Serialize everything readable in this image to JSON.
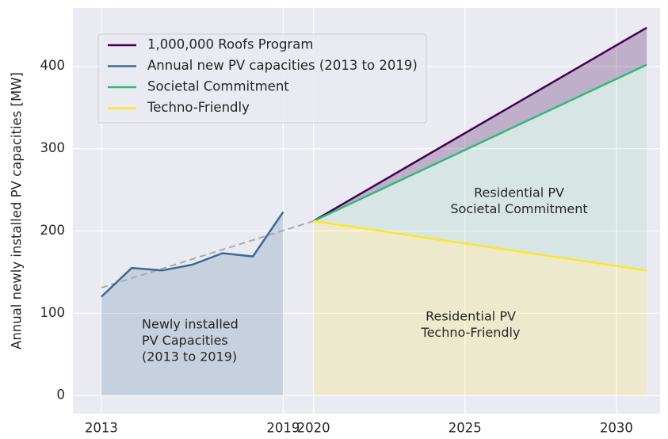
{
  "chart_data": {
    "type": "line",
    "y_label": "Annual newly installed PV capacities [MW]",
    "xlim": [
      2012.06,
      2031.44
    ],
    "ylim": [
      -22,
      471
    ],
    "xticks": [
      2013,
      2019,
      2020,
      2025,
      2030
    ],
    "yticks": [
      0,
      100,
      200,
      300,
      400
    ],
    "grid": true,
    "background": "#eaeaf2",
    "legend": "upper left",
    "series": [
      {
        "name": "1,000,000 Roofs Program",
        "color": "#440154",
        "x": [
          2020,
          2031
        ],
        "values": [
          212,
          447
        ],
        "fill_to": 2,
        "fill_opacity": 0.25
      },
      {
        "name": "Annual new PV capacities (2013 to 2019)",
        "color": "#3b6a96",
        "x": [
          2013,
          2014,
          2015,
          2016,
          2017,
          2018,
          2019
        ],
        "values": [
          120,
          155,
          152,
          159,
          173,
          169,
          223
        ],
        "fill_to": "zero",
        "fill_opacity": 0.2
      },
      {
        "name": "Societal Commitment",
        "color": "#35b779",
        "x": [
          2020,
          2031
        ],
        "values": [
          212,
          402
        ],
        "fill_to": 3,
        "fill_opacity": 0.1
      },
      {
        "name": "Techno-Friendly",
        "color": "#fde725",
        "x": [
          2020,
          2031
        ],
        "values": [
          212,
          152
        ],
        "fill_to": "zero",
        "fill_opacity": 0.18
      }
    ],
    "trend": {
      "color": "#aaaaaa",
      "x": [
        2013,
        2020
      ],
      "values": [
        131,
        212
      ]
    },
    "annotations": [
      {
        "lines": [
          "Newly installed",
          "PV Capacities",
          "(2013 to 2019)"
        ]
      },
      {
        "lines": [
          "Residential PV",
          "Societal Commitment"
        ]
      },
      {
        "lines": [
          "Residential PV",
          "Techno-Friendly"
        ]
      }
    ]
  }
}
